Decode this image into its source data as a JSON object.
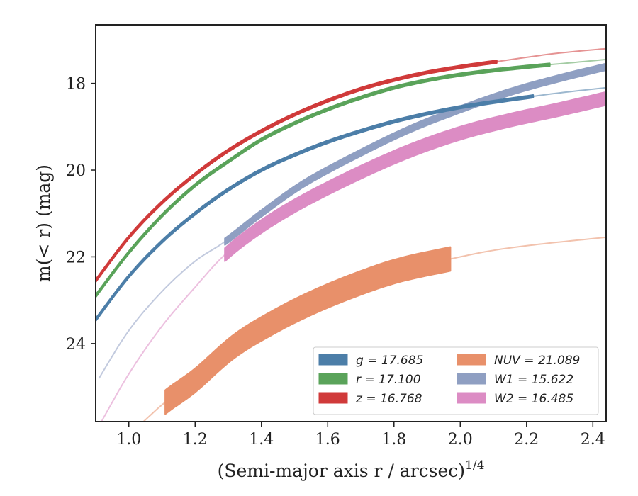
{
  "chart_data": {
    "type": "line",
    "xlabel": "(Semi-major axis r / arcsec)",
    "xlabel_exponent": "1/4",
    "ylabel": "m(< r) (mag)",
    "xlim": [
      0.9,
      2.44
    ],
    "ylim": [
      25.8,
      16.65
    ],
    "y_inverted": true,
    "grid": false,
    "legend_position": "lower-right",
    "x_ticks": [
      "1.0",
      "1.2",
      "1.4",
      "1.6",
      "1.8",
      "2.0",
      "2.2",
      "2.4"
    ],
    "y_ticks": [
      "18",
      "20",
      "22",
      "24"
    ],
    "series": [
      {
        "name": "g = 17.685",
        "legend_label": "g = 17.685",
        "color": "#4c7ea8",
        "band_width": 0.06,
        "measured_range": [
          0.9,
          2.22
        ],
        "x": [
          0.9,
          1.0,
          1.1,
          1.2,
          1.3,
          1.4,
          1.5,
          1.6,
          1.7,
          1.8,
          1.9,
          2.0,
          2.1,
          2.22,
          2.3,
          2.44
        ],
        "y": [
          23.45,
          22.45,
          21.65,
          21.0,
          20.45,
          20.0,
          19.65,
          19.35,
          19.1,
          18.88,
          18.7,
          18.55,
          18.43,
          18.3,
          18.22,
          18.1
        ]
      },
      {
        "name": "r = 17.100",
        "legend_label": "r = 17.100",
        "color": "#5aa35a",
        "band_width": 0.06,
        "measured_range": [
          0.9,
          2.27
        ],
        "x": [
          0.9,
          1.0,
          1.1,
          1.2,
          1.3,
          1.4,
          1.5,
          1.6,
          1.7,
          1.8,
          1.9,
          2.0,
          2.1,
          2.2,
          2.27,
          2.44
        ],
        "y": [
          22.9,
          21.9,
          21.05,
          20.35,
          19.8,
          19.3,
          18.92,
          18.6,
          18.33,
          18.1,
          17.93,
          17.8,
          17.7,
          17.62,
          17.57,
          17.45
        ]
      },
      {
        "name": "z = 16.768",
        "legend_label": "z = 16.768",
        "color": "#d03a3a",
        "band_width": 0.06,
        "measured_range": [
          0.9,
          2.11
        ],
        "x": [
          0.9,
          1.0,
          1.1,
          1.2,
          1.3,
          1.4,
          1.5,
          1.6,
          1.7,
          1.8,
          1.9,
          2.0,
          2.11,
          2.2,
          2.3,
          2.44
        ],
        "y": [
          22.55,
          21.55,
          20.75,
          20.1,
          19.55,
          19.1,
          18.72,
          18.4,
          18.13,
          17.92,
          17.75,
          17.62,
          17.5,
          17.4,
          17.3,
          17.2
        ]
      },
      {
        "name": "NUV = 21.089",
        "legend_label": "NUV = 21.089",
        "color": "#e8906a",
        "band_width": 0.55,
        "measured_range": [
          1.11,
          1.97
        ],
        "x": [
          1.03,
          1.11,
          1.2,
          1.32,
          1.45,
          1.57,
          1.7,
          1.82,
          1.97,
          2.1,
          2.25,
          2.44
        ],
        "y": [
          25.9,
          25.35,
          24.85,
          24.05,
          23.45,
          23.0,
          22.6,
          22.3,
          22.05,
          21.85,
          21.7,
          21.55
        ]
      },
      {
        "name": "W1 = 15.622",
        "legend_label": "W1 = 15.622",
        "color": "#8f9fc2",
        "band_width": 0.15,
        "measured_range": [
          1.29,
          2.44
        ],
        "x": [
          0.91,
          1.0,
          1.1,
          1.2,
          1.29,
          1.4,
          1.53,
          1.7,
          1.85,
          2.0,
          2.15,
          2.3,
          2.44
        ],
        "y": [
          24.8,
          23.7,
          22.8,
          22.1,
          21.65,
          21.0,
          20.3,
          19.6,
          19.05,
          18.6,
          18.2,
          17.88,
          17.62
        ]
      },
      {
        "name": "W2 = 16.485",
        "legend_label": "W2 = 16.485",
        "color": "#dc8cc4",
        "band_width": 0.3,
        "measured_range": [
          1.29,
          2.44
        ],
        "x": [
          0.91,
          1.0,
          1.1,
          1.2,
          1.29,
          1.4,
          1.53,
          1.7,
          1.85,
          2.0,
          2.15,
          2.3,
          2.44
        ],
        "y": [
          25.9,
          24.7,
          23.6,
          22.7,
          21.95,
          21.3,
          20.7,
          20.05,
          19.55,
          19.15,
          18.85,
          18.6,
          18.35
        ]
      }
    ]
  }
}
